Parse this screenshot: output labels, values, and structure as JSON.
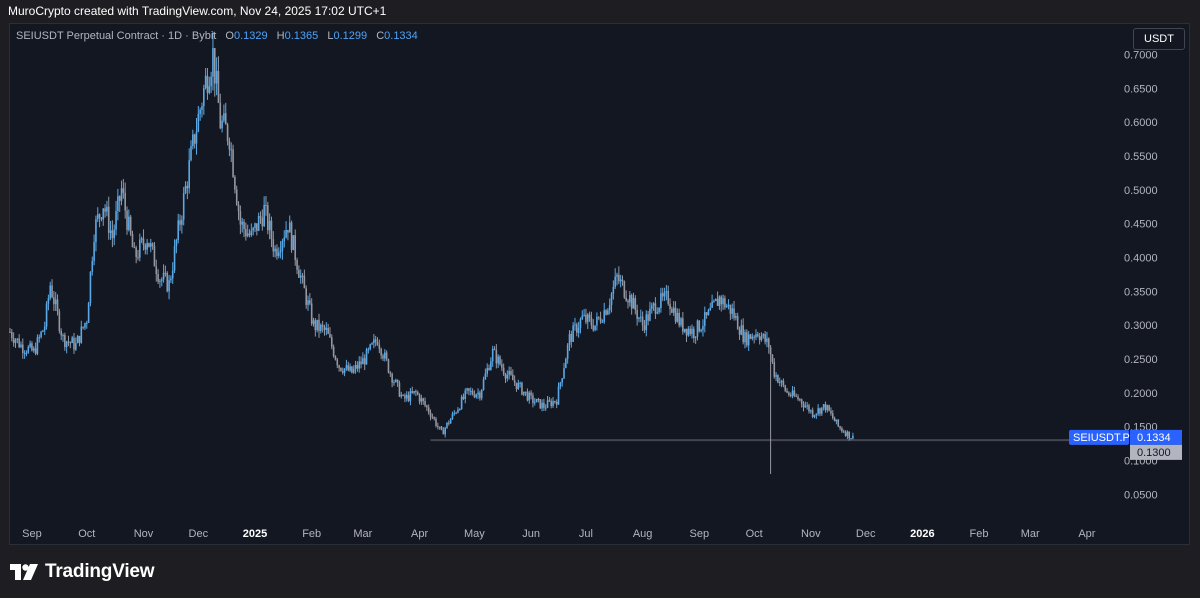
{
  "header": {
    "attribution": "MuroCrypto created with TradingView.com, Nov 24, 2025 17:02 UTC+1"
  },
  "legend": {
    "symbol": "SEIUSDT Perpetual Contract · 1D · Bybit",
    "open_label": "O",
    "open": "0.1329",
    "high_label": "H",
    "high": "0.1365",
    "low_label": "L",
    "low": "0.1299",
    "close_label": "C",
    "close": "0.1334"
  },
  "unit_button": "USDT",
  "price_tags": {
    "symbol_tag": "SEIUSDT.P",
    "last_price": "0.1334",
    "level_price": "0.1300"
  },
  "footer": {
    "brand": "TradingView",
    "logo_icon": "tradingview-logo-icon"
  },
  "colors": {
    "background": "#131722",
    "candle": "#5aa9e6",
    "candle_dark": "#9598a1",
    "accent": "#2962ff",
    "level_line": "#434651"
  },
  "chart_data": {
    "type": "candlestick",
    "title": "SEIUSDT Perpetual Contract · 1D · Bybit",
    "y_axis": {
      "side": "right",
      "ylim": [
        0.015,
        0.745
      ],
      "ticks": [
        "0.7000",
        "0.6500",
        "0.6000",
        "0.5500",
        "0.5000",
        "0.4500",
        "0.4000",
        "0.3500",
        "0.3000",
        "0.2500",
        "0.2000",
        "0.1500",
        "0.1000",
        "0.0500"
      ]
    },
    "x_axis": {
      "start": "2024-08-20",
      "end": "2026-04-18",
      "ticks": [
        {
          "label": "Sep",
          "date": "2024-09-01"
        },
        {
          "label": "Oct",
          "date": "2024-10-01"
        },
        {
          "label": "Nov",
          "date": "2024-11-01"
        },
        {
          "label": "Dec",
          "date": "2024-12-01"
        },
        {
          "label": "2025",
          "date": "2025-01-01",
          "bold": true
        },
        {
          "label": "Feb",
          "date": "2025-02-01"
        },
        {
          "label": "Mar",
          "date": "2025-03-01"
        },
        {
          "label": "Apr",
          "date": "2025-04-01"
        },
        {
          "label": "May",
          "date": "2025-05-01"
        },
        {
          "label": "Jun",
          "date": "2025-06-01"
        },
        {
          "label": "Jul",
          "date": "2025-07-01"
        },
        {
          "label": "Aug",
          "date": "2025-08-01"
        },
        {
          "label": "Sep",
          "date": "2025-09-01"
        },
        {
          "label": "Oct",
          "date": "2025-10-01"
        },
        {
          "label": "Nov",
          "date": "2025-11-01"
        },
        {
          "label": "Dec",
          "date": "2025-12-01"
        },
        {
          "label": "2026",
          "date": "2026-01-01",
          "bold": true
        },
        {
          "label": "Feb",
          "date": "2026-02-01"
        },
        {
          "label": "Mar",
          "date": "2026-03-01"
        },
        {
          "label": "Apr",
          "date": "2026-04-01"
        }
      ]
    },
    "price_path": [
      [
        "2024-08-20",
        0.29
      ],
      [
        "2024-08-26",
        0.27
      ],
      [
        "2024-09-02",
        0.26
      ],
      [
        "2024-09-08",
        0.3
      ],
      [
        "2024-09-11",
        0.36
      ],
      [
        "2024-09-18",
        0.28
      ],
      [
        "2024-09-25",
        0.27
      ],
      [
        "2024-10-01",
        0.31
      ],
      [
        "2024-10-05",
        0.44
      ],
      [
        "2024-10-10",
        0.48
      ],
      [
        "2024-10-15",
        0.43
      ],
      [
        "2024-10-20",
        0.5
      ],
      [
        "2024-10-27",
        0.4
      ],
      [
        "2024-11-03",
        0.43
      ],
      [
        "2024-11-10",
        0.37
      ],
      [
        "2024-11-15",
        0.36
      ],
      [
        "2024-11-22",
        0.47
      ],
      [
        "2024-11-29",
        0.58
      ],
      [
        "2024-12-05",
        0.66
      ],
      [
        "2024-12-09",
        0.7
      ],
      [
        "2024-12-13",
        0.6
      ],
      [
        "2024-12-18",
        0.58
      ],
      [
        "2024-12-24",
        0.45
      ],
      [
        "2024-12-30",
        0.43
      ],
      [
        "2025-01-06",
        0.47
      ],
      [
        "2025-01-12",
        0.41
      ],
      [
        "2025-01-19",
        0.45
      ],
      [
        "2025-01-27",
        0.36
      ],
      [
        "2025-02-02",
        0.3
      ],
      [
        "2025-02-09",
        0.29
      ],
      [
        "2025-02-16",
        0.24
      ],
      [
        "2025-02-23",
        0.23
      ],
      [
        "2025-03-02",
        0.25
      ],
      [
        "2025-03-09",
        0.28
      ],
      [
        "2025-03-16",
        0.23
      ],
      [
        "2025-03-23",
        0.19
      ],
      [
        "2025-03-30",
        0.2
      ],
      [
        "2025-04-07",
        0.17
      ],
      [
        "2025-04-13",
        0.14
      ],
      [
        "2025-04-20",
        0.17
      ],
      [
        "2025-04-27",
        0.2
      ],
      [
        "2025-05-04",
        0.2
      ],
      [
        "2025-05-11",
        0.26
      ],
      [
        "2025-05-18",
        0.23
      ],
      [
        "2025-05-25",
        0.21
      ],
      [
        "2025-06-01",
        0.19
      ],
      [
        "2025-06-08",
        0.18
      ],
      [
        "2025-06-15",
        0.19
      ],
      [
        "2025-06-22",
        0.28
      ],
      [
        "2025-06-29",
        0.31
      ],
      [
        "2025-07-06",
        0.3
      ],
      [
        "2025-07-13",
        0.33
      ],
      [
        "2025-07-18",
        0.37
      ],
      [
        "2025-07-25",
        0.34
      ],
      [
        "2025-08-01",
        0.3
      ],
      [
        "2025-08-08",
        0.33
      ],
      [
        "2025-08-15",
        0.34
      ],
      [
        "2025-08-22",
        0.3
      ],
      [
        "2025-08-29",
        0.29
      ],
      [
        "2025-09-05",
        0.31
      ],
      [
        "2025-09-12",
        0.34
      ],
      [
        "2025-09-19",
        0.32
      ],
      [
        "2025-09-26",
        0.28
      ],
      [
        "2025-10-03",
        0.29
      ],
      [
        "2025-10-09",
        0.27
      ],
      [
        "2025-10-12",
        0.23
      ],
      [
        "2025-10-19",
        0.2
      ],
      [
        "2025-10-26",
        0.19
      ],
      [
        "2025-11-02",
        0.17
      ],
      [
        "2025-11-09",
        0.18
      ],
      [
        "2025-11-16",
        0.15
      ],
      [
        "2025-11-24",
        0.1334
      ]
    ],
    "support_level": 0.13,
    "support_level_start": "2025-04-07",
    "wick_low": {
      "date": "2025-10-10",
      "value": 0.08
    },
    "last_price": 0.1334
  }
}
